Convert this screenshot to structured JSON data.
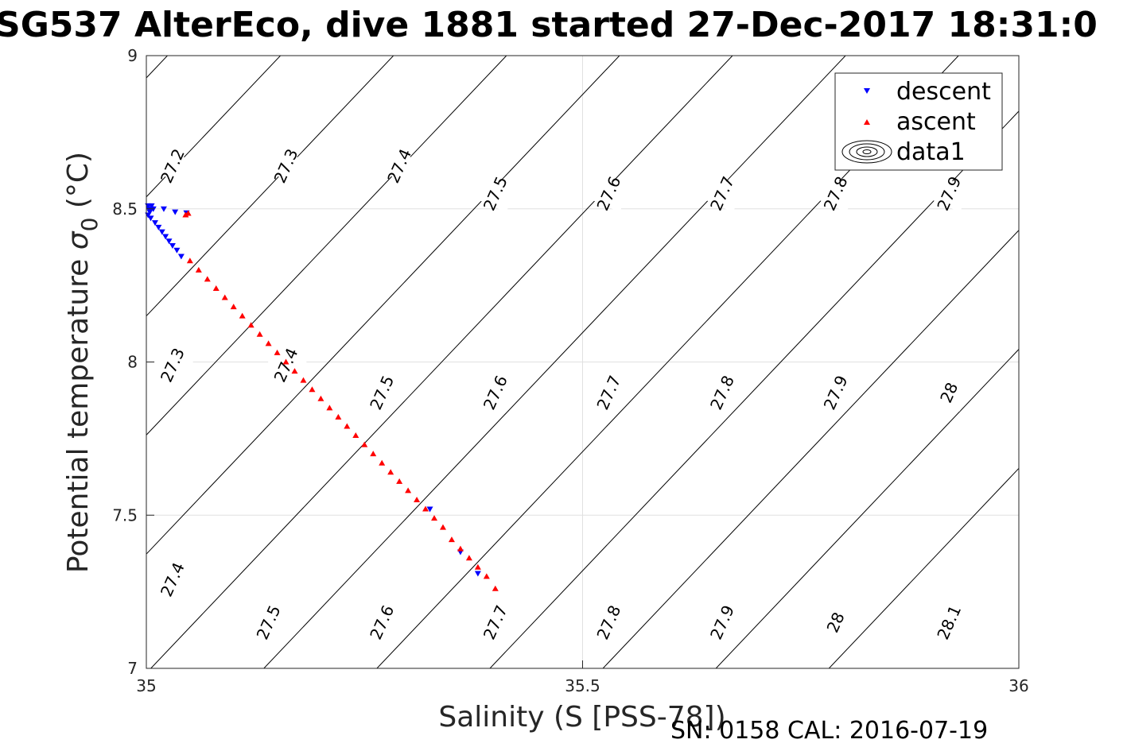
{
  "chart_data": {
    "type": "scatter",
    "title": "SG537 AlterEco, dive 1881 started 27-Dec-2017 18:31:0",
    "xlabel": "Salinity (S [PSS-78])",
    "ylabel_main": "Potential temperature ",
    "ylabel_sigma": "σ",
    "ylabel_sub": "0",
    "ylabel_unit": " (°C)",
    "footer": "SN: 0158  CAL: 2016-07-19",
    "xlim": [
      35,
      36
    ],
    "ylim": [
      7,
      9
    ],
    "x_ticks": [
      35,
      35.5,
      36
    ],
    "y_ticks": [
      7,
      7.5,
      8,
      8.5,
      9
    ],
    "x_tick_labels": [
      "35",
      "35.5",
      "36"
    ],
    "y_tick_labels": [
      "7",
      "7.5",
      "8",
      "8.5",
      "9"
    ],
    "grid": true,
    "legend_position": "top-right",
    "legend": [
      {
        "label": "descent",
        "marker": "triangle-down",
        "color": "#0000ff"
      },
      {
        "label": "ascent",
        "marker": "triangle-up",
        "color": "#ff0000"
      },
      {
        "label": "data1",
        "marker": "contour",
        "color": "#000000"
      }
    ],
    "series": [
      {
        "name": "descent",
        "color": "#0000ff",
        "marker": "triangle-down",
        "points": [
          [
            35.002,
            8.51
          ],
          [
            35.003,
            8.5
          ],
          [
            35.004,
            8.49
          ],
          [
            35.005,
            8.5
          ],
          [
            35.006,
            8.51
          ],
          [
            35.008,
            8.5
          ],
          [
            35.002,
            8.48
          ],
          [
            35.005,
            8.47
          ],
          [
            35.01,
            8.455
          ],
          [
            35.014,
            8.44
          ],
          [
            35.018,
            8.425
          ],
          [
            35.022,
            8.41
          ],
          [
            35.026,
            8.395
          ],
          [
            35.03,
            8.38
          ],
          [
            35.035,
            8.365
          ],
          [
            35.04,
            8.345
          ],
          [
            35.02,
            8.5
          ],
          [
            35.033,
            8.49
          ],
          [
            35.046,
            8.487
          ],
          [
            35.325,
            7.52
          ],
          [
            35.36,
            7.38
          ],
          [
            35.38,
            7.31
          ]
        ]
      },
      {
        "name": "ascent",
        "color": "#ff0000",
        "marker": "triangle-up",
        "points": [
          [
            35.045,
            8.48
          ],
          [
            35.048,
            8.485
          ],
          [
            35.05,
            8.33
          ],
          [
            35.06,
            8.3
          ],
          [
            35.07,
            8.27
          ],
          [
            35.08,
            8.24
          ],
          [
            35.09,
            8.21
          ],
          [
            35.1,
            8.18
          ],
          [
            35.11,
            8.15
          ],
          [
            35.12,
            8.12
          ],
          [
            35.13,
            8.09
          ],
          [
            35.14,
            8.06
          ],
          [
            35.15,
            8.03
          ],
          [
            35.16,
            8.0
          ],
          [
            35.17,
            7.97
          ],
          [
            35.18,
            7.94
          ],
          [
            35.19,
            7.91
          ],
          [
            35.2,
            7.88
          ],
          [
            35.21,
            7.85
          ],
          [
            35.22,
            7.82
          ],
          [
            35.23,
            7.79
          ],
          [
            35.24,
            7.76
          ],
          [
            35.25,
            7.73
          ],
          [
            35.26,
            7.7
          ],
          [
            35.27,
            7.67
          ],
          [
            35.28,
            7.64
          ],
          [
            35.29,
            7.61
          ],
          [
            35.3,
            7.58
          ],
          [
            35.31,
            7.55
          ],
          [
            35.32,
            7.52
          ],
          [
            35.33,
            7.49
          ],
          [
            35.34,
            7.46
          ],
          [
            35.35,
            7.42
          ],
          [
            35.36,
            7.39
          ],
          [
            35.37,
            7.36
          ],
          [
            35.38,
            7.33
          ],
          [
            35.39,
            7.3
          ],
          [
            35.4,
            7.26
          ]
        ]
      }
    ],
    "isopycnals": [
      {
        "value": 27.2,
        "label": "27.2",
        "label_pos": [
          35.03,
          8.64
        ]
      },
      {
        "value": 27.3,
        "label": "27.3",
        "label_pos": [
          35.16,
          8.64
        ]
      },
      {
        "value": 27.4,
        "label": "27.4",
        "label_pos": [
          35.29,
          8.64
        ]
      },
      {
        "value": 27.5,
        "label": "27.5",
        "label_pos": [
          35.4,
          8.55
        ]
      },
      {
        "value": 27.6,
        "label": "27.6",
        "label_pos": [
          35.53,
          8.55
        ]
      },
      {
        "value": 27.7,
        "label": "27.7",
        "label_pos": [
          35.66,
          8.55
        ]
      },
      {
        "value": 27.8,
        "label": "27.8",
        "label_pos": [
          35.79,
          8.55
        ]
      },
      {
        "value": 27.9,
        "label": "27.9",
        "label_pos": [
          35.92,
          8.55
        ]
      },
      {
        "value": 27.3,
        "label": "27.3",
        "label_pos": [
          35.03,
          7.99
        ]
      },
      {
        "value": 27.4,
        "label": "27.4",
        "label_pos": [
          35.16,
          7.99
        ]
      },
      {
        "value": 27.5,
        "label": "27.5",
        "label_pos": [
          35.27,
          7.9
        ]
      },
      {
        "value": 27.6,
        "label": "27.6",
        "label_pos": [
          35.4,
          7.9
        ]
      },
      {
        "value": 27.7,
        "label": "27.7",
        "label_pos": [
          35.53,
          7.9
        ]
      },
      {
        "value": 27.8,
        "label": "27.8",
        "label_pos": [
          35.66,
          7.9
        ]
      },
      {
        "value": 27.9,
        "label": "27.9",
        "label_pos": [
          35.79,
          7.9
        ]
      },
      {
        "value": 28.0,
        "label": "28",
        "label_pos": [
          35.92,
          7.9
        ]
      },
      {
        "value": 27.4,
        "label": "27.4",
        "label_pos": [
          35.03,
          7.29
        ]
      },
      {
        "value": 27.5,
        "label": "27.5",
        "label_pos": [
          35.14,
          7.15
        ]
      },
      {
        "value": 27.6,
        "label": "27.6",
        "label_pos": [
          35.27,
          7.15
        ]
      },
      {
        "value": 27.7,
        "label": "27.7",
        "label_pos": [
          35.4,
          7.15
        ]
      },
      {
        "value": 27.8,
        "label": "27.8",
        "label_pos": [
          35.53,
          7.15
        ]
      },
      {
        "value": 27.9,
        "label": "27.9",
        "label_pos": [
          35.66,
          7.15
        ]
      },
      {
        "value": 28.0,
        "label": "28",
        "label_pos": [
          35.79,
          7.15
        ]
      },
      {
        "value": 28.1,
        "label": "28.1",
        "label_pos": [
          35.92,
          7.15
        ]
      }
    ]
  }
}
